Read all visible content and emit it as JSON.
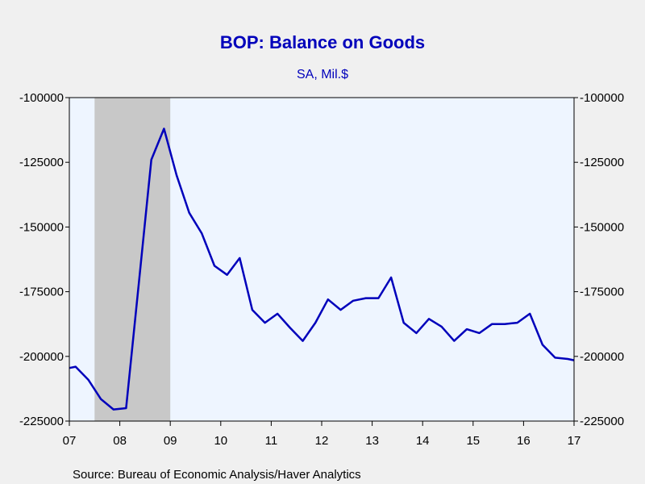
{
  "colors": {
    "page_bg": "#f0f0f0",
    "plot_bg": "#eef5ff",
    "recession": "#c8c8c8",
    "line": "#0000bb",
    "title": "#0000bb",
    "axis": "#000000"
  },
  "chart_data": {
    "type": "line",
    "title": "BOP: Balance on Goods",
    "subtitle": "SA, Mil.$",
    "source": "Source:  Bureau of Economic Analysis/Haver Analytics",
    "xlim": [
      2007.0,
      2017.0
    ],
    "ylim": [
      -225000,
      -100000
    ],
    "y_axes": "left-and-right",
    "grid": false,
    "x_ticks": [
      {
        "value": 2007,
        "label": "07"
      },
      {
        "value": 2008,
        "label": "08"
      },
      {
        "value": 2009,
        "label": "09"
      },
      {
        "value": 2010,
        "label": "10"
      },
      {
        "value": 2011,
        "label": "11"
      },
      {
        "value": 2012,
        "label": "12"
      },
      {
        "value": 2013,
        "label": "13"
      },
      {
        "value": 2014,
        "label": "14"
      },
      {
        "value": 2015,
        "label": "15"
      },
      {
        "value": 2016,
        "label": "16"
      },
      {
        "value": 2017,
        "label": "17"
      }
    ],
    "y_ticks": [
      {
        "value": -100000,
        "label": "-100000"
      },
      {
        "value": -125000,
        "label": "-125000"
      },
      {
        "value": -150000,
        "label": "-150000"
      },
      {
        "value": -175000,
        "label": "-175000"
      },
      {
        "value": -200000,
        "label": "-200000"
      },
      {
        "value": -225000,
        "label": "-225000"
      }
    ],
    "recession_shading": [
      {
        "start": 2007.5,
        "end": 2009.0
      }
    ],
    "series": [
      {
        "x": [
          2007.0,
          2007.125,
          2007.375,
          2007.625,
          2007.875,
          2008.125,
          2008.375,
          2008.625,
          2008.875,
          2009.125,
          2009.375,
          2009.625,
          2009.875,
          2010.125,
          2010.375,
          2010.625,
          2010.875,
          2011.125,
          2011.375,
          2011.625,
          2011.875,
          2012.125,
          2012.375,
          2012.625,
          2012.875,
          2013.125,
          2013.375,
          2013.625,
          2013.875,
          2014.125,
          2014.375,
          2014.625,
          2014.875,
          2015.125,
          2015.375,
          2015.625,
          2015.875,
          2016.125,
          2016.375,
          2016.625,
          2016.875,
          2017.0
        ],
        "values": [
          -204500,
          -204000,
          -209000,
          -216500,
          -220500,
          -220000,
          -172000,
          -124000,
          -112000,
          -130000,
          -144500,
          -152500,
          -165000,
          -168500,
          -162000,
          -182000,
          -187000,
          -183500,
          -189000,
          -194000,
          -187000,
          -178000,
          -182000,
          -178500,
          -177500,
          -177500,
          -169500,
          -187000,
          -191000,
          -185500,
          -188500,
          -194000,
          -189500,
          -191000,
          -187500,
          -187500,
          -187000,
          -183500,
          -195500,
          -200500,
          -201000,
          -201500
        ]
      }
    ]
  }
}
